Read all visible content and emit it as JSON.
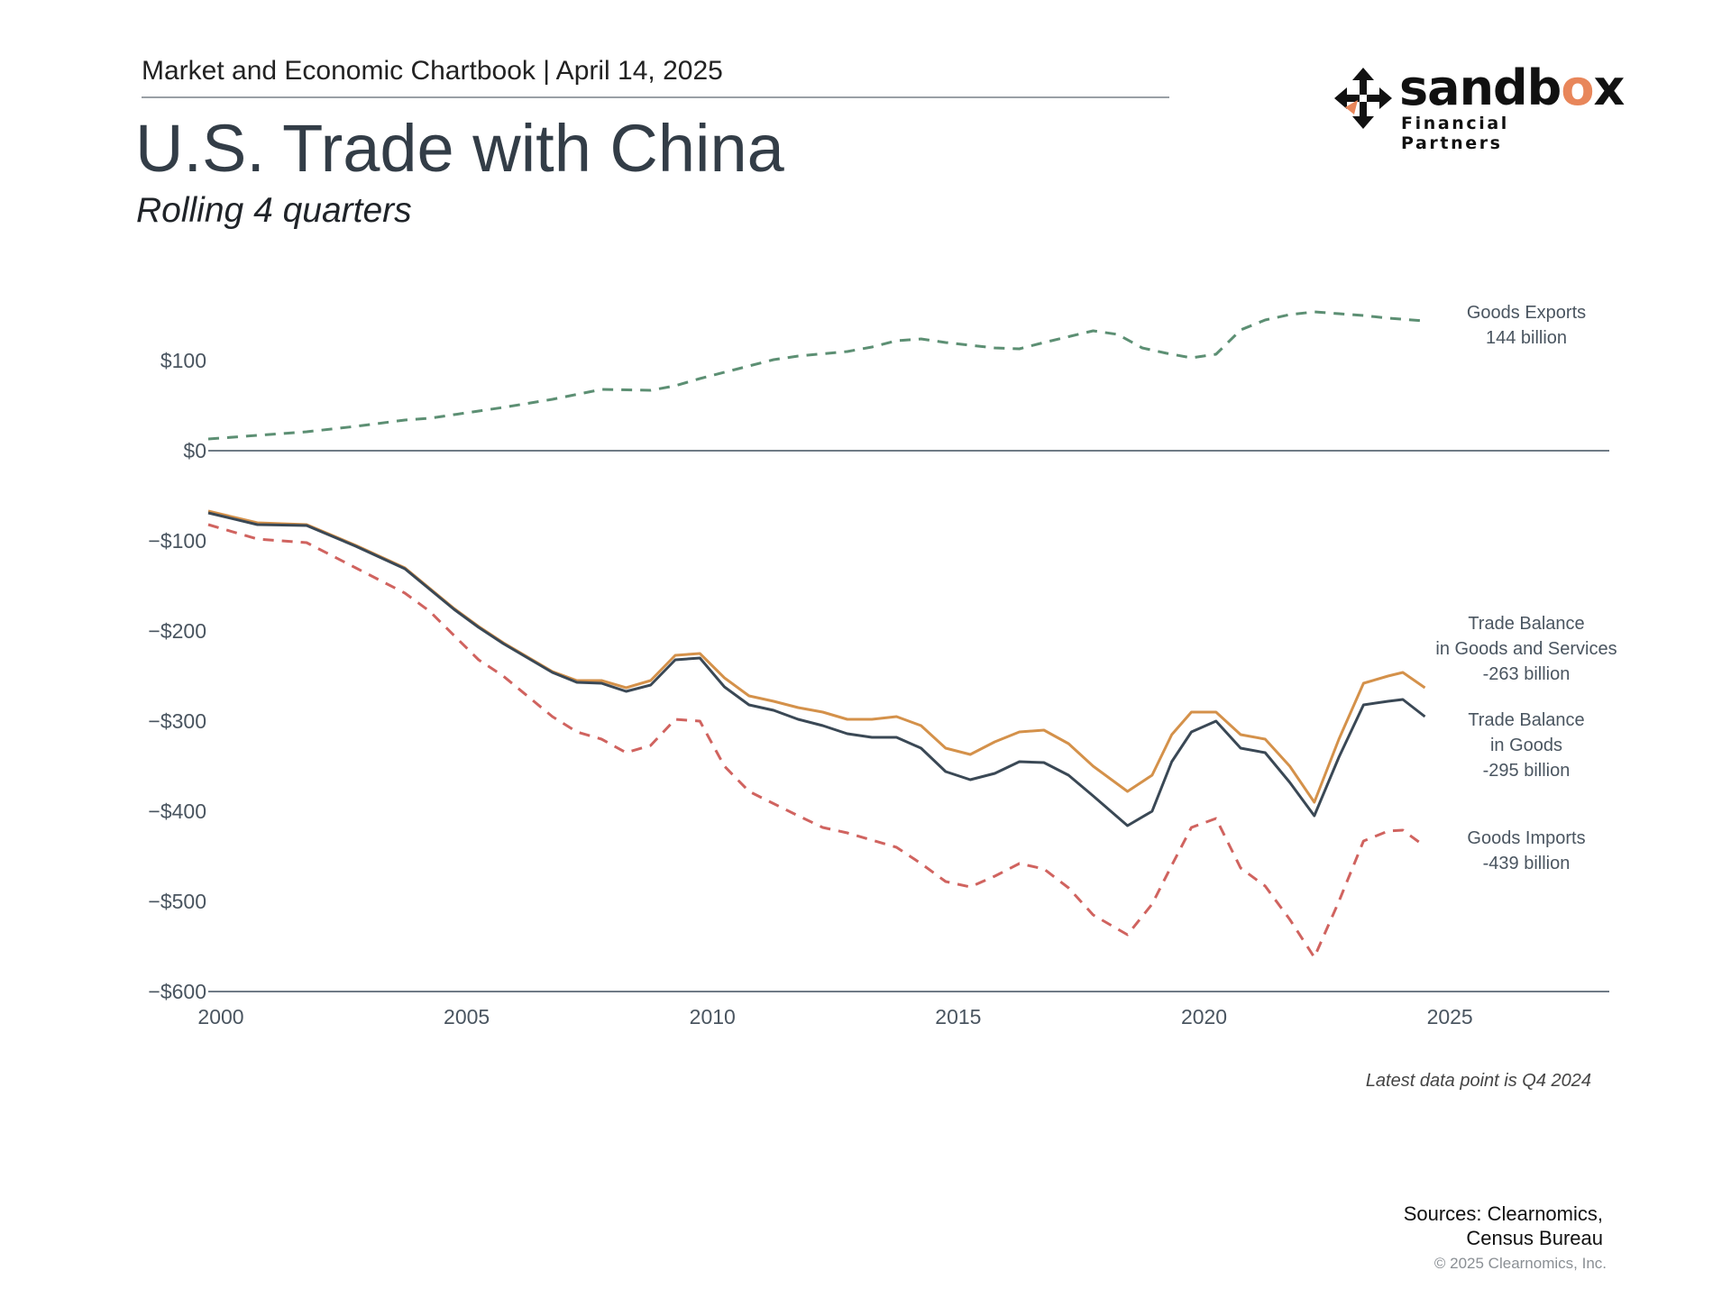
{
  "header": {
    "chartbook": "Market and Economic Chartbook | April 14, 2025",
    "title": "U.S. Trade with China",
    "subtitle": "Rolling 4 quarters"
  },
  "logo": {
    "brand_main": "sandb",
    "brand_accent": "o",
    "brand_end": "x",
    "tagline": "Financial Partners",
    "icon": "compass-arrows-icon"
  },
  "colors": {
    "exports": "#5c8f73",
    "imports": "#d0635f",
    "balance_goods_services": "#d4914a",
    "balance_goods": "#3a4855",
    "zero_line": "#6f7b86",
    "axis_text": "#4a5560"
  },
  "note": "Latest data point is Q4 2024",
  "sources": [
    "Sources: Clearnomics,",
    "Census Bureau"
  ],
  "copyright": "© 2025 Clearnomics, Inc.",
  "chart_data": {
    "type": "line",
    "title": "U.S. Trade with China",
    "subtitle": "Rolling 4 quarters",
    "xlim": [
      2000,
      2028.5
    ],
    "ylim": [
      -600,
      180
    ],
    "x_ticks": [
      2000,
      2005,
      2010,
      2015,
      2020,
      2025
    ],
    "x_tick_labels": [
      "2000",
      "2005",
      "2010",
      "2015",
      "2020",
      "2025"
    ],
    "y_ticks": [
      100,
      0,
      -100,
      -200,
      -300,
      -400,
      -500,
      -600
    ],
    "y_tick_labels": [
      "$100",
      "$0",
      "−$100",
      "−$200",
      "−$300",
      "−$400",
      "−$500",
      "−$600"
    ],
    "grid": false,
    "series": [
      {
        "key": "exports",
        "label_lines": [
          "Goods Exports",
          "144 billion"
        ],
        "style": "dashed",
        "points": [
          [
            2000,
            13
          ],
          [
            2001,
            17
          ],
          [
            2002,
            21
          ],
          [
            2003,
            27
          ],
          [
            2004,
            34
          ],
          [
            2004.5,
            36
          ],
          [
            2005,
            40
          ],
          [
            2006,
            48
          ],
          [
            2007,
            57
          ],
          [
            2008,
            68
          ],
          [
            2009,
            67
          ],
          [
            2009.5,
            72
          ],
          [
            2010,
            80
          ],
          [
            2011,
            94
          ],
          [
            2011.5,
            101
          ],
          [
            2012,
            105
          ],
          [
            2013,
            110
          ],
          [
            2013.5,
            115
          ],
          [
            2014,
            122
          ],
          [
            2014.5,
            124
          ],
          [
            2015,
            120
          ],
          [
            2016,
            114
          ],
          [
            2016.5,
            113
          ],
          [
            2017,
            120
          ],
          [
            2018,
            133
          ],
          [
            2018.5,
            129
          ],
          [
            2019,
            114
          ],
          [
            2019.5,
            108
          ],
          [
            2020,
            103
          ],
          [
            2020.5,
            107
          ],
          [
            2021,
            134
          ],
          [
            2021.5,
            145
          ],
          [
            2022,
            151
          ],
          [
            2022.5,
            154
          ],
          [
            2023,
            152
          ],
          [
            2023.5,
            150
          ],
          [
            2024,
            147
          ],
          [
            2024.75,
            144
          ]
        ]
      },
      {
        "key": "imports",
        "label_lines": [
          "Goods Imports",
          "-439 billion"
        ],
        "style": "dashed",
        "points": [
          [
            2000,
            -82
          ],
          [
            2001,
            -98
          ],
          [
            2002,
            -102
          ],
          [
            2003,
            -130
          ],
          [
            2004,
            -158
          ],
          [
            2004.5,
            -178
          ],
          [
            2005,
            -205
          ],
          [
            2005.5,
            -232
          ],
          [
            2006,
            -250
          ],
          [
            2007,
            -295
          ],
          [
            2007.5,
            -312
          ],
          [
            2008,
            -320
          ],
          [
            2008.5,
            -335
          ],
          [
            2009,
            -327
          ],
          [
            2009.5,
            -298
          ],
          [
            2010,
            -300
          ],
          [
            2010.5,
            -350
          ],
          [
            2011,
            -378
          ],
          [
            2012,
            -405
          ],
          [
            2012.5,
            -418
          ],
          [
            2013,
            -424
          ],
          [
            2014,
            -440
          ],
          [
            2014.5,
            -458
          ],
          [
            2015,
            -478
          ],
          [
            2015.5,
            -484
          ],
          [
            2016,
            -472
          ],
          [
            2016.5,
            -458
          ],
          [
            2017,
            -464
          ],
          [
            2017.5,
            -485
          ],
          [
            2018,
            -515
          ],
          [
            2018.7,
            -537
          ],
          [
            2019.2,
            -503
          ],
          [
            2019.6,
            -460
          ],
          [
            2020,
            -418
          ],
          [
            2020.5,
            -408
          ],
          [
            2021,
            -463
          ],
          [
            2021.5,
            -483
          ],
          [
            2022,
            -520
          ],
          [
            2022.5,
            -562
          ],
          [
            2023,
            -500
          ],
          [
            2023.5,
            -433
          ],
          [
            2024,
            -422
          ],
          [
            2024.3,
            -421
          ],
          [
            2024.75,
            -439
          ]
        ]
      },
      {
        "key": "balance_goods_services",
        "label_lines": [
          "Trade Balance",
          "in Goods and Services",
          "-263 billion"
        ],
        "style": "solid",
        "points": [
          [
            2000,
            -67
          ],
          [
            2001,
            -80
          ],
          [
            2002,
            -82
          ],
          [
            2003,
            -105
          ],
          [
            2004,
            -130
          ],
          [
            2005,
            -175
          ],
          [
            2005.5,
            -195
          ],
          [
            2006,
            -213
          ],
          [
            2007,
            -245
          ],
          [
            2007.5,
            -255
          ],
          [
            2008,
            -255
          ],
          [
            2008.5,
            -263
          ],
          [
            2009,
            -255
          ],
          [
            2009.5,
            -227
          ],
          [
            2010,
            -225
          ],
          [
            2010.5,
            -252
          ],
          [
            2011,
            -272
          ],
          [
            2011.5,
            -278
          ],
          [
            2012,
            -285
          ],
          [
            2012.5,
            -290
          ],
          [
            2013,
            -298
          ],
          [
            2013.5,
            -298
          ],
          [
            2014,
            -295
          ],
          [
            2014.5,
            -305
          ],
          [
            2015,
            -330
          ],
          [
            2015.5,
            -337
          ],
          [
            2016,
            -323
          ],
          [
            2016.5,
            -312
          ],
          [
            2017,
            -310
          ],
          [
            2017.5,
            -325
          ],
          [
            2018,
            -350
          ],
          [
            2018.7,
            -378
          ],
          [
            2019.2,
            -360
          ],
          [
            2019.6,
            -315
          ],
          [
            2020,
            -290
          ],
          [
            2020.5,
            -290
          ],
          [
            2021,
            -315
          ],
          [
            2021.5,
            -320
          ],
          [
            2022,
            -350
          ],
          [
            2022.5,
            -390
          ],
          [
            2023,
            -320
          ],
          [
            2023.5,
            -258
          ],
          [
            2024,
            -250
          ],
          [
            2024.3,
            -246
          ],
          [
            2024.75,
            -263
          ]
        ]
      },
      {
        "key": "balance_goods",
        "label_lines": [
          "Trade Balance",
          "in Goods",
          "-295 billion"
        ],
        "style": "solid",
        "points": [
          [
            2000,
            -69
          ],
          [
            2001,
            -82
          ],
          [
            2002,
            -83
          ],
          [
            2003,
            -106
          ],
          [
            2004,
            -131
          ],
          [
            2005,
            -176
          ],
          [
            2005.5,
            -196
          ],
          [
            2006,
            -214
          ],
          [
            2007,
            -246
          ],
          [
            2007.5,
            -257
          ],
          [
            2008,
            -258
          ],
          [
            2008.5,
            -267
          ],
          [
            2009,
            -260
          ],
          [
            2009.5,
            -232
          ],
          [
            2010,
            -230
          ],
          [
            2010.5,
            -262
          ],
          [
            2011,
            -282
          ],
          [
            2011.5,
            -288
          ],
          [
            2012,
            -298
          ],
          [
            2012.5,
            -305
          ],
          [
            2013,
            -314
          ],
          [
            2013.5,
            -318
          ],
          [
            2014,
            -318
          ],
          [
            2014.5,
            -330
          ],
          [
            2015,
            -356
          ],
          [
            2015.5,
            -365
          ],
          [
            2016,
            -358
          ],
          [
            2016.5,
            -345
          ],
          [
            2017,
            -346
          ],
          [
            2017.5,
            -360
          ],
          [
            2018,
            -383
          ],
          [
            2018.7,
            -416
          ],
          [
            2019.2,
            -400
          ],
          [
            2019.6,
            -345
          ],
          [
            2020,
            -312
          ],
          [
            2020.5,
            -300
          ],
          [
            2021,
            -330
          ],
          [
            2021.5,
            -335
          ],
          [
            2022,
            -368
          ],
          [
            2022.5,
            -405
          ],
          [
            2023,
            -340
          ],
          [
            2023.5,
            -282
          ],
          [
            2024,
            -278
          ],
          [
            2024.3,
            -276
          ],
          [
            2024.75,
            -295
          ]
        ]
      }
    ]
  }
}
